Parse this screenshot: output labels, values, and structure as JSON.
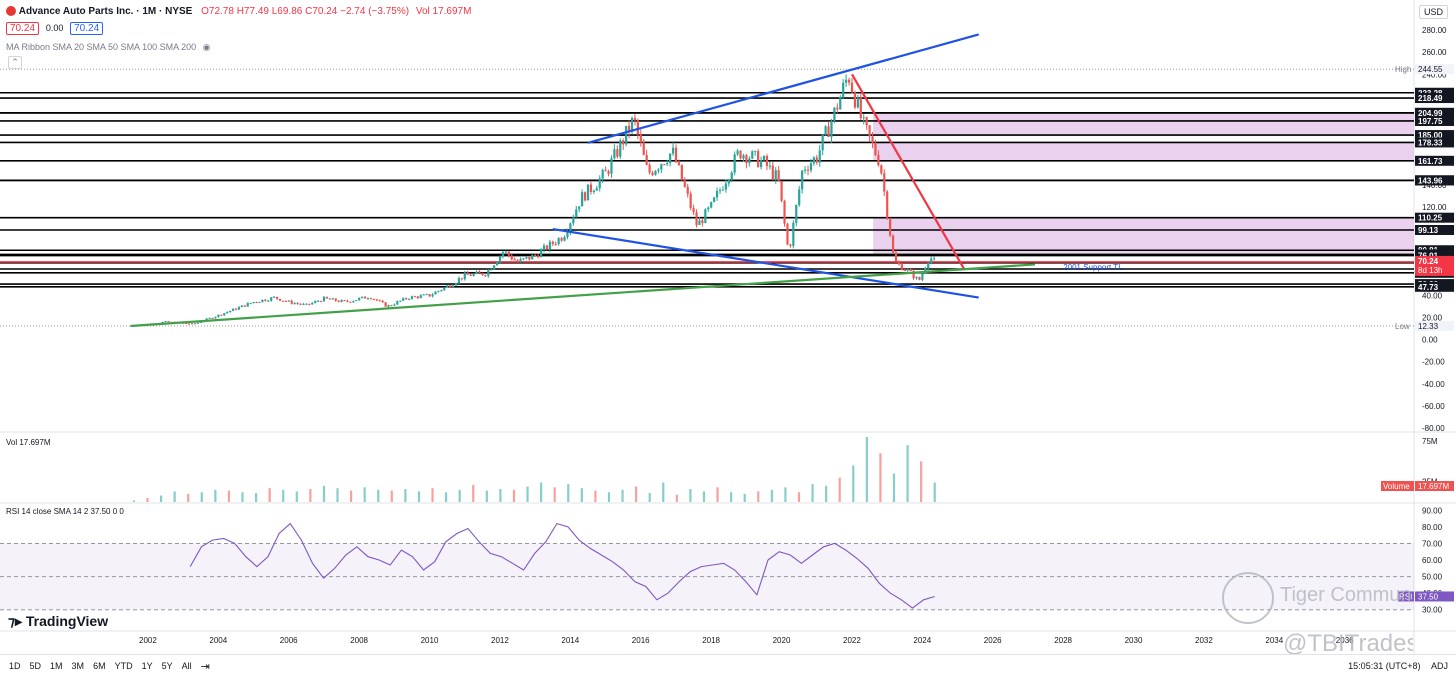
{
  "header": {
    "symbol_title": "Advance Auto Parts Inc. · 1M · NYSE",
    "ohlc": "O72.78 H77.49 L69.86 C70.24 −2.74 (−3.75%)",
    "vol": "Vol 17.697M",
    "sell_price": "70.24",
    "spread": "0.00",
    "buy_price": "70.24",
    "ma_ribbon": "MA Ribbon SMA 20 SMA 50 SMA 100 SMA 200",
    "currency": "USD"
  },
  "colors": {
    "up": "#26a69a",
    "down": "#ef5350",
    "channel": "#1e53e5",
    "downtrend": "#f23645",
    "support": "#43a047",
    "zone": "#e1bee7",
    "rsi": "#7e57c2"
  },
  "chart_data": [
    {
      "type": "line",
      "title": "Advance Auto Parts Inc. · 1M · NYSE",
      "xlabel": "",
      "ylabel": "",
      "x_ticks": [
        "2002",
        "2004",
        "2006",
        "2008",
        "2010",
        "2012",
        "2014",
        "2016",
        "2018",
        "2020",
        "2022",
        "2024",
        "2026",
        "2028",
        "2030",
        "2032",
        "2034",
        "2036"
      ],
      "y_ticks": [
        280,
        260,
        240,
        220,
        200,
        180,
        160,
        140,
        120,
        100,
        80,
        60,
        40,
        20,
        0,
        -20,
        -40,
        -60,
        -80
      ],
      "ylim": [
        -80,
        290
      ],
      "grid": false,
      "price_path": [
        [
          2001.5,
          12.3
        ],
        [
          2002.5,
          16
        ],
        [
          2003.3,
          14
        ],
        [
          2004,
          22
        ],
        [
          2005,
          34
        ],
        [
          2005.6,
          38
        ],
        [
          2006,
          34
        ],
        [
          2006.5,
          31
        ],
        [
          2007,
          37
        ],
        [
          2007.6,
          34
        ],
        [
          2008.3,
          39
        ],
        [
          2008.8,
          30
        ],
        [
          2009.4,
          38
        ],
        [
          2010,
          40
        ],
        [
          2010.6,
          50
        ],
        [
          2011,
          58
        ],
        [
          2011.6,
          60
        ],
        [
          2012.1,
          80
        ],
        [
          2012.5,
          70
        ],
        [
          2013,
          76
        ],
        [
          2013.8,
          94
        ],
        [
          2014.3,
          128
        ],
        [
          2015,
          150
        ],
        [
          2015.8,
          199
        ],
        [
          2016.2,
          150
        ],
        [
          2016.9,
          170
        ],
        [
          2017.6,
          103
        ],
        [
          2018,
          120
        ],
        [
          2018.8,
          170
        ],
        [
          2019.5,
          160
        ],
        [
          2019.9,
          145
        ],
        [
          2020.2,
          78
        ],
        [
          2020.6,
          155
        ],
        [
          2021,
          165
        ],
        [
          2021.5,
          205
        ],
        [
          2021.9,
          240
        ],
        [
          2022.3,
          195
        ],
        [
          2022.8,
          160
        ],
        [
          2023.2,
          70
        ],
        [
          2023.6,
          62
        ],
        [
          2023.9,
          53
        ],
        [
          2024.2,
          75
        ],
        [
          2024.35,
          70.24
        ]
      ],
      "horizontal_levels": [
        223.28,
        218.49,
        205.14,
        204.99,
        197.75,
        185.0,
        178.33,
        161.73,
        144.09,
        143.96,
        110.25,
        99.13,
        80.81,
        77.0,
        76.01,
        69.38,
        63.83,
        60.4,
        50.2,
        47.73
      ],
      "current_price_level": 70.24,
      "high": {
        "label": "High",
        "value": "244.55"
      },
      "low": {
        "label": "Low",
        "value": "12.33"
      },
      "current_price_label": "70.24",
      "countdown_label": "8d 13h",
      "resistance_zones": [
        [
          185.0,
          204.99
        ],
        [
          161.73,
          178.33
        ],
        [
          76.01,
          110.25
        ]
      ],
      "trendlines": [
        {
          "name": "upper channel",
          "points": [
            [
              2014.5,
              178
            ],
            [
              2025.6,
              276
            ]
          ]
        },
        {
          "name": "lower channel",
          "points": [
            [
              2013.5,
              100
            ],
            [
              2025.6,
              38
            ]
          ]
        },
        {
          "name": "downtrend",
          "points": [
            [
              2022,
              240
            ],
            [
              2025.2,
              63
            ]
          ]
        },
        {
          "name": "2001 support TL",
          "points": [
            [
              2001.5,
              12.3
            ],
            [
              2027.2,
              68
            ]
          ]
        }
      ],
      "annotations": [
        {
          "text": "2001 Support TL",
          "x": 2028,
          "y": 63
        }
      ]
    },
    {
      "type": "bar",
      "title": "Vol 17.697M",
      "values": [
        2,
        5,
        8,
        13,
        10,
        12,
        15,
        14,
        12,
        11,
        17,
        15,
        13,
        16,
        20,
        17,
        14,
        18,
        15,
        14,
        16,
        13,
        17,
        12,
        15,
        21,
        14,
        16,
        15,
        19,
        24,
        18,
        22,
        17,
        14,
        12,
        15,
        19,
        11,
        24,
        9,
        16,
        13,
        18,
        12,
        10,
        13,
        15,
        18,
        12,
        22,
        20,
        30,
        45,
        80,
        60,
        35,
        70,
        50,
        24
      ],
      "ylim": [
        0,
        80
      ],
      "y_ticks": [
        75,
        25
      ],
      "label_tag": "Volume",
      "last_value": "17.697M"
    },
    {
      "type": "line",
      "title": "RSI 14 close SMA 14 2 37.50 0 0",
      "ylim": [
        25,
        92
      ],
      "y_ticks": [
        90,
        80,
        70,
        60,
        50,
        40,
        30
      ],
      "overbought": 70,
      "middle": 50,
      "oversold": 30,
      "values": [
        56,
        68,
        72,
        73,
        70,
        62,
        56,
        62,
        76,
        82,
        72,
        58,
        49,
        55,
        63,
        68,
        62,
        60,
        57,
        66,
        62,
        54,
        59,
        71,
        76,
        79,
        71,
        64,
        62,
        58,
        54,
        64,
        71,
        82,
        80,
        72,
        67,
        63,
        59,
        54,
        47,
        44,
        36,
        40,
        47,
        53,
        56,
        57,
        58,
        54,
        47,
        39,
        60,
        65,
        63,
        58,
        63,
        68,
        70,
        66,
        61,
        55,
        46,
        40,
        36,
        31,
        36,
        38
      ],
      "label_tag": "RSI",
      "last_value": "37.50"
    }
  ],
  "toolbar": {
    "ranges": [
      "1D",
      "5D",
      "1M",
      "3M",
      "6M",
      "YTD",
      "1Y",
      "5Y",
      "All"
    ],
    "clock": "15:05:31 (UTC+8)",
    "adj": "ADJ"
  },
  "brand": {
    "tradingview": "TradingView",
    "watermark1": "Tiger Community",
    "watermark2": "@TBITrades"
  }
}
